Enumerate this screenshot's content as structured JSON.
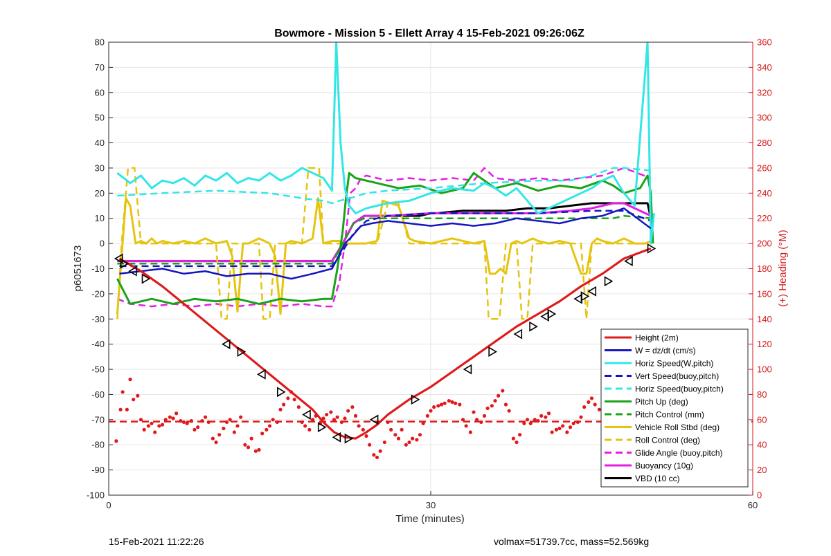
{
  "footer": {
    "timestamp": "15-Feb-2021 11:22:26",
    "summary": "volmax=51739.7cc, mass=52.569kg"
  },
  "chart_data": {
    "type": "line",
    "title": "Bowmore - Mission 5 - Ellett Array 4 15-Feb-2021 09:26:06Z",
    "xlabel": "Time (minutes)",
    "ylabel": "p6051673",
    "y2label": "(+) Heading (°M)",
    "xlim": [
      0,
      60
    ],
    "ylim": [
      -100,
      80
    ],
    "y2lim": [
      0,
      360
    ],
    "xticks": [
      0,
      30,
      60
    ],
    "yticks": [
      -100,
      -90,
      -80,
      -70,
      -60,
      -50,
      -40,
      -30,
      -20,
      -10,
      0,
      10,
      20,
      30,
      40,
      50,
      60,
      70,
      80
    ],
    "y2ticks": [
      0,
      20,
      40,
      60,
      80,
      100,
      120,
      140,
      160,
      180,
      200,
      220,
      240,
      260,
      280,
      300,
      320,
      340,
      360
    ],
    "grid": true,
    "legend_position": "bottom-right",
    "colors": {
      "red": "#e0191b",
      "blue": "#1515c0",
      "cyan": "#33e6e6",
      "green": "#19a319",
      "yellow": "#e5c40f",
      "magenta": "#e61ce6",
      "black": "#000000",
      "right_axis": "#d4191b"
    },
    "series": [
      {
        "name": "Height (2m)",
        "color": "red",
        "dash": false,
        "width": 3,
        "x": [
          1,
          3,
          5,
          7,
          9,
          11,
          13,
          15,
          17,
          19,
          20,
          21,
          22,
          23,
          24,
          25,
          26,
          27,
          28,
          30,
          32,
          34,
          36,
          38,
          40,
          42,
          44,
          46,
          48,
          50.5
        ],
        "y": [
          -6,
          -11,
          -17,
          -24,
          -31,
          -38,
          -45,
          -52,
          -59,
          -66,
          -71,
          -75,
          -77,
          -77.5,
          -75,
          -72,
          -68,
          -65,
          -62,
          -57,
          -51,
          -45,
          -39,
          -33,
          -28,
          -23,
          -17,
          -12,
          -6,
          -2
        ]
      },
      {
        "name": "W = dz/dt (cm/s)",
        "color": "blue",
        "dash": false,
        "width": 2.5,
        "x": [
          1,
          3,
          5,
          7,
          9,
          11,
          13,
          15,
          17,
          19,
          20.8,
          21.3,
          22,
          22.7,
          23.5,
          24.5,
          26,
          28,
          30,
          32,
          34,
          36,
          38,
          40,
          42,
          44,
          46,
          48,
          50.5
        ],
        "y": [
          -12,
          -11,
          -10,
          -12,
          -11,
          -13,
          -12,
          -12,
          -14,
          -12,
          -10,
          -6,
          0,
          3,
          7,
          8,
          9,
          8,
          7,
          8,
          7,
          8,
          10,
          9,
          8,
          10,
          11,
          14,
          6
        ]
      },
      {
        "name": "Horiz Speed(W,pitch)",
        "color": "cyan",
        "dash": false,
        "width": 3,
        "x": [
          0.8,
          2,
          3,
          4,
          5,
          6,
          7,
          8,
          9,
          10,
          11,
          12,
          13,
          14,
          15,
          16,
          17,
          18,
          19,
          20,
          20.8,
          21.2,
          21.6,
          22,
          22.4,
          23,
          24,
          25,
          26,
          28,
          30,
          32,
          34,
          35,
          36,
          37,
          38,
          39,
          40,
          42,
          44,
          45,
          46,
          47,
          48,
          49,
          50.2,
          50.5,
          50.8
        ],
        "y": [
          28,
          24,
          27,
          22,
          25,
          24,
          26,
          23,
          27,
          25,
          28,
          24,
          26,
          25,
          28,
          25,
          27,
          30,
          28,
          26,
          21,
          80,
          40,
          22,
          15,
          12,
          14,
          15,
          16,
          17,
          20,
          22,
          21,
          24,
          22,
          19,
          22,
          17,
          12,
          16,
          20,
          22,
          25,
          27,
          20,
          15,
          80,
          0,
          12
        ]
      },
      {
        "name": "Vert Speed(buoy,pitch)",
        "color": "blue",
        "dash": true,
        "width": 2.5,
        "x": [
          1,
          5,
          10,
          15,
          20.8,
          21.8,
          22.8,
          24,
          26,
          30,
          35,
          40,
          45,
          48,
          50.5
        ],
        "y": [
          -9,
          -9,
          -9,
          -9,
          -9,
          -3,
          4,
          9,
          11,
          12,
          12,
          12,
          13,
          13,
          9
        ]
      },
      {
        "name": "Horiz Speed(buoy,pitch)",
        "color": "cyan",
        "dash": true,
        "width": 2.5,
        "x": [
          0.8,
          5,
          10,
          15,
          18,
          20,
          20.8,
          21.5,
          22.5,
          24,
          26,
          30,
          35,
          40,
          43,
          45,
          47,
          48,
          50.5
        ],
        "y": [
          19,
          20,
          21,
          20,
          18,
          17,
          16,
          17,
          18,
          20,
          21,
          22,
          24,
          25,
          25,
          27,
          30,
          30,
          29
        ]
      },
      {
        "name": "Pitch Up (deg)",
        "color": "green",
        "dash": false,
        "width": 3,
        "x": [
          0.8,
          2,
          4,
          6,
          8,
          10,
          12,
          14,
          16,
          18,
          20,
          20.8,
          21.3,
          21.8,
          22.1,
          22.4,
          23,
          25,
          27,
          29,
          31,
          33,
          34,
          35,
          36,
          38,
          40,
          42,
          44,
          46,
          47,
          48,
          49.5,
          50.2,
          50.5,
          50.7
        ],
        "y": [
          -14,
          -24,
          -22,
          -24,
          -22,
          -23,
          -22,
          -24,
          -22,
          -23,
          -22,
          -22,
          -10,
          5,
          18,
          28,
          26,
          24,
          22,
          23,
          20,
          22,
          28,
          25,
          22,
          24,
          21,
          23,
          22,
          25,
          23,
          20,
          22,
          27,
          20,
          0
        ]
      },
      {
        "name": "Pitch Control (mm)",
        "color": "green",
        "dash": true,
        "width": 2.5,
        "x": [
          0.8,
          10,
          20.8,
          21.8,
          22.8,
          23.8,
          30,
          40,
          47,
          48,
          50.5
        ],
        "y": [
          -8,
          -8,
          -8,
          0,
          8,
          10,
          10,
          10,
          10,
          11,
          10
        ]
      },
      {
        "name": "Vehicle Roll Stbd (deg)",
        "color": "yellow",
        "dash": false,
        "width": 3,
        "x": [
          0.8,
          1.2,
          1.6,
          2,
          2.5,
          3,
          3.5,
          4,
          4.5,
          5,
          6,
          7,
          8,
          9,
          10,
          11,
          11.5,
          12,
          12.5,
          13,
          14,
          15,
          15.5,
          16,
          16.5,
          17,
          18,
          19,
          19.5,
          20,
          20.8,
          21.5,
          22,
          24,
          25,
          25.5,
          27,
          28,
          28.5,
          30,
          32,
          34,
          35,
          35.5,
          36,
          36.5,
          37,
          37.5,
          38,
          38.5,
          39.5,
          40,
          41,
          42,
          43,
          44,
          44.5,
          45,
          45.5,
          46,
          47,
          48,
          49,
          50,
          50.5
        ],
        "y": [
          -28,
          -5,
          18,
          15,
          0,
          1,
          0,
          2,
          0,
          1,
          0,
          1,
          0,
          2,
          0,
          1,
          -5,
          -27,
          0,
          0,
          2,
          0,
          -5,
          -28,
          0,
          1,
          0,
          2,
          18,
          0,
          1,
          1,
          0,
          0,
          1,
          17,
          15,
          2,
          1,
          0,
          2,
          0,
          1,
          -12,
          -12,
          -10,
          -12,
          0,
          1,
          0,
          2,
          1,
          0,
          1,
          0,
          -12,
          -12,
          0,
          2,
          1,
          0,
          2,
          0,
          0,
          1
        ]
      },
      {
        "name": "Roll Control (deg)",
        "color": "yellow",
        "dash": true,
        "width": 2.5,
        "x": [
          0.8,
          1.2,
          1.8,
          2,
          2.4,
          3,
          8,
          10,
          10.5,
          11,
          11.5,
          12,
          13,
          14,
          14.4,
          15,
          15.5,
          16,
          17,
          18,
          18.6,
          19,
          19.6,
          20,
          20.8,
          21.5,
          22,
          25,
          26,
          26.5,
          27,
          28,
          30,
          33,
          34,
          35,
          35.4,
          36.4,
          37,
          38,
          38.5,
          39,
          39.5,
          40,
          43,
          44,
          44.5,
          45,
          46,
          48,
          49,
          50,
          50.5
        ],
        "y": [
          -30,
          0,
          30,
          30,
          30,
          0,
          0,
          0,
          -30,
          -30,
          0,
          0,
          0,
          0,
          -30,
          -30,
          0,
          0,
          0,
          0,
          30,
          30,
          30,
          0,
          0,
          0,
          0,
          0,
          16,
          16,
          16,
          0,
          0,
          0,
          0,
          0,
          -30,
          -30,
          0,
          0,
          -30,
          -30,
          0,
          0,
          0,
          0,
          -30,
          0,
          0,
          0,
          0,
          0,
          0
        ]
      },
      {
        "name": "Glide Angle (buoy,pitch)",
        "color": "magenta",
        "dash": true,
        "width": 2.5,
        "x": [
          0.8,
          2,
          4,
          6,
          8,
          10,
          12,
          14,
          16,
          18,
          20,
          20.8,
          21.5,
          22,
          22.5,
          23,
          23.5,
          24,
          25,
          26,
          28,
          30,
          32,
          34,
          35,
          36,
          38,
          40,
          42,
          44,
          46,
          48,
          50.5
        ],
        "y": [
          -22,
          -24,
          -25,
          -24,
          -25,
          -24,
          -25,
          -24,
          -25,
          -24,
          -25,
          -25,
          -15,
          0,
          20,
          22,
          26,
          27,
          26,
          25,
          26,
          25,
          26,
          25,
          30,
          26,
          25,
          26,
          25,
          26,
          27,
          30,
          26
        ]
      },
      {
        "name": "Buoyancy (10g)",
        "color": "magenta",
        "dash": false,
        "width": 3,
        "x": [
          0.8,
          10,
          20.8,
          21.8,
          22.8,
          23.8,
          26,
          30,
          35,
          40,
          43,
          45,
          47,
          48,
          50.5
        ],
        "y": [
          -7,
          -7,
          -7,
          0,
          8,
          11,
          11,
          12,
          12,
          12,
          13,
          14,
          16,
          16,
          11
        ]
      },
      {
        "name": "VBD (10 cc)",
        "color": "black",
        "dash": false,
        "width": 3,
        "x": [
          0.8,
          10,
          20.8,
          21.8,
          22.8,
          23.8,
          26,
          29,
          30,
          30.5,
          33,
          35,
          37,
          39,
          41,
          43,
          45,
          47,
          48,
          50.2,
          50.5
        ],
        "y": [
          -7,
          -7,
          -7,
          0,
          8,
          11,
          11,
          11,
          12,
          12,
          13,
          13,
          13,
          14,
          14,
          15,
          16,
          16,
          16,
          16,
          10
        ]
      }
    ],
    "heading_mean": {
      "axis": "right",
      "y": 58.5,
      "color": "red"
    },
    "heading_points": {
      "axis": "right",
      "color": "red",
      "x": [
        0.7,
        1.1,
        1.3,
        1.7,
        2.0,
        2.3,
        2.7,
        3.0,
        3.3,
        3.7,
        4.0,
        4.3,
        4.7,
        5.0,
        5.3,
        5.7,
        6.0,
        6.3,
        6.7,
        7.0,
        7.3,
        7.7,
        8.0,
        8.3,
        8.7,
        9.0,
        9.3,
        9.7,
        10.0,
        10.3,
        10.7,
        11.0,
        11.3,
        11.7,
        12.0,
        12.3,
        12.7,
        13.0,
        13.3,
        13.7,
        14.0,
        14.3,
        14.7,
        15.0,
        15.3,
        15.7,
        16.0,
        16.3,
        16.7,
        17.0,
        17.3,
        17.7,
        18.0,
        18.3,
        18.7,
        19.0,
        19.3,
        19.7,
        20.0,
        20.3,
        20.7,
        21.0,
        21.3,
        21.7,
        22.0,
        22.3,
        22.7,
        23.0,
        23.3,
        23.7,
        24.0,
        24.3,
        24.7,
        25.0,
        25.3,
        25.7,
        26.0,
        26.3,
        26.7,
        27.0,
        27.3,
        27.7,
        28.0,
        28.3,
        28.7,
        29.0,
        29.3,
        29.7,
        30.0,
        30.3,
        30.7,
        31.0,
        31.3,
        31.7,
        32.0,
        32.3,
        32.7,
        33.0,
        33.3,
        33.7,
        34.0,
        34.3,
        34.7,
        35.0,
        35.3,
        35.7,
        36.0,
        36.3,
        36.7,
        37.0,
        37.3,
        37.7,
        38.0,
        38.3,
        38.7,
        39.0,
        39.3,
        39.7,
        40.0,
        40.3,
        40.7,
        41.0,
        41.3,
        41.7,
        42.0,
        42.3,
        42.7,
        43.0,
        43.3,
        43.7,
        44.0,
        44.3,
        44.7,
        45.0,
        45.3,
        45.7,
        46.0,
        46.3,
        46.7,
        47.0,
        47.3,
        47.7,
        48.0,
        48.3
      ],
      "y": [
        43,
        68,
        82,
        68,
        92,
        76,
        79,
        60,
        52,
        55,
        57,
        50,
        55,
        56,
        60,
        62,
        61,
        65,
        59,
        58,
        57,
        59,
        52,
        54,
        59,
        62,
        58,
        45,
        42,
        48,
        53,
        58,
        60,
        50,
        55,
        62,
        40,
        38,
        45,
        35,
        36,
        49,
        52,
        55,
        60,
        58,
        68,
        72,
        77,
        82,
        76,
        70,
        58,
        55,
        52,
        60,
        63,
        57,
        61,
        64,
        66,
        60,
        62,
        58,
        61,
        67,
        70,
        63,
        55,
        52,
        47,
        40,
        32,
        30,
        35,
        42,
        58,
        52,
        48,
        45,
        52,
        40,
        42,
        45,
        44,
        48,
        57,
        63,
        67,
        70,
        71,
        72,
        73,
        75,
        74,
        73,
        72,
        60,
        55,
        50,
        66,
        60,
        58,
        63,
        69,
        71,
        75,
        79,
        83,
        72,
        67,
        45,
        42,
        48,
        57,
        60,
        57,
        60,
        59,
        63,
        62,
        65,
        50,
        52,
        53,
        55,
        50,
        54,
        57,
        58,
        62,
        70,
        74,
        77,
        72,
        68,
        62,
        58,
        55,
        60,
        57,
        61,
        52,
        48
      ]
    },
    "height_markers": {
      "x": [
        1.0,
        1.4,
        2.3,
        3.4,
        11.0,
        12.3,
        14.3,
        16.0,
        18.5,
        19.8,
        21.3,
        22.3,
        24.8,
        28.5,
        33.5,
        35.7,
        38.2,
        39.5,
        40.7,
        41.2,
        43.8,
        44.3,
        45.1,
        46.5,
        48.5,
        50.5
      ],
      "y": [
        -6,
        -8,
        -11,
        -14,
        -40,
        -43,
        -52,
        -59,
        -68,
        -73,
        -77,
        -77.5,
        -70,
        -62,
        -50,
        -43,
        -36,
        -33,
        -29,
        -28,
        -22,
        -21,
        -19,
        -15,
        -7,
        -2
      ]
    },
    "legend": [
      "Height (2m)",
      "W = dz/dt (cm/s)",
      "Horiz Speed(W,pitch)",
      "Vert Speed(buoy,pitch)",
      "Horiz Speed(buoy,pitch)",
      "Pitch Up (deg)",
      "Pitch Control (mm)",
      "Vehicle Roll Stbd (deg)",
      "Roll Control (deg)",
      "Glide Angle (buoy,pitch)",
      "Buoyancy (10g)",
      "VBD (10 cc)"
    ]
  }
}
